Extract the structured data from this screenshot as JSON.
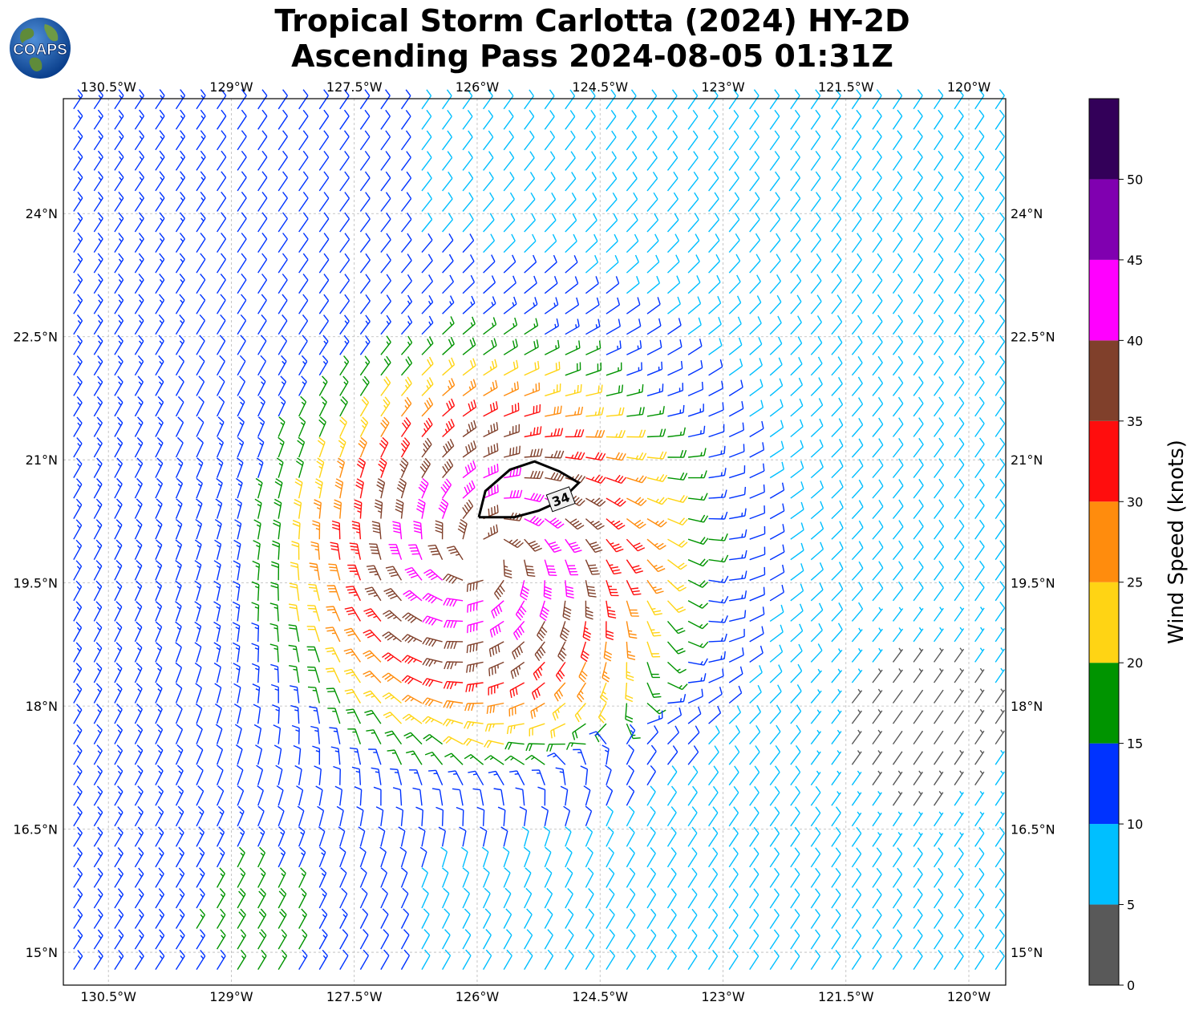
{
  "title": {
    "line1": "Tropical Storm Carlotta (2024) HY-2D",
    "line2": "Ascending Pass 2024-08-05 01:31Z"
  },
  "logo": {
    "text": "COAPS",
    "icon": "globe-logo-icon"
  },
  "map": {
    "lon_labels": [
      "130.5°W",
      "129°W",
      "127.5°W",
      "126°W",
      "124.5°W",
      "123°W",
      "121.5°W",
      "120°W"
    ],
    "lon_values": [
      -130.5,
      -129,
      -127.5,
      -126,
      -124.5,
      -123,
      -121.5,
      -120
    ],
    "lat_labels": [
      "24°N",
      "22.5°N",
      "21°N",
      "19.5°N",
      "18°N",
      "16.5°N",
      "15°N"
    ],
    "lat_values": [
      24,
      22.5,
      21,
      19.5,
      18,
      16.5,
      15
    ],
    "lon_range": [
      -131.05,
      -119.55
    ],
    "lat_range": [
      14.6,
      25.4
    ],
    "storm_center": {
      "lon": -125.9,
      "lat": 19.85
    },
    "contour_label": "34",
    "gridlines": true
  },
  "colorbar": {
    "label": "Wind Speed (knots)",
    "tick_labels": [
      "0",
      "5",
      "10",
      "15",
      "20",
      "25",
      "30",
      "35",
      "40",
      "45",
      "50"
    ],
    "range": [
      0,
      55
    ],
    "bins": [
      {
        "min": 0,
        "max": 5,
        "color": "#595959"
      },
      {
        "min": 5,
        "max": 10,
        "color": "#00bfff"
      },
      {
        "min": 10,
        "max": 15,
        "color": "#0033ff"
      },
      {
        "min": 15,
        "max": 20,
        "color": "#009400"
      },
      {
        "min": 20,
        "max": 25,
        "color": "#ffd414"
      },
      {
        "min": 25,
        "max": 30,
        "color": "#ff8c0d"
      },
      {
        "min": 30,
        "max": 35,
        "color": "#ff0d0d"
      },
      {
        "min": 35,
        "max": 40,
        "color": "#80402b"
      },
      {
        "min": 40,
        "max": 45,
        "color": "#ff00ff"
      },
      {
        "min": 45,
        "max": 50,
        "color": "#8000b0"
      },
      {
        "min": 50,
        "max": 55,
        "color": "#330059"
      }
    ]
  }
}
